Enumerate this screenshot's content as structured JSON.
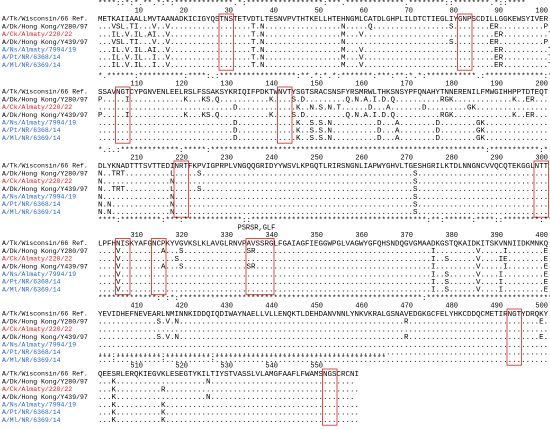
{
  "strains": [
    {
      "name": "A/Tk/Wisconsin/66 Ref.",
      "color": "#000000"
    },
    {
      "name": "A/Dk/Hong Kong/Y280/97",
      "color": "#000000"
    },
    {
      "name": "A/Ck/Almaty/220/22",
      "color": "#d62020"
    },
    {
      "name": "A/Dk/Hong Kong/Y439/97",
      "color": "#000000"
    },
    {
      "name": "A/Ns/Almaty/7994/19",
      "color": "#2a63b8"
    },
    {
      "name": "A/Pt/NR/6368/14",
      "color": "#2a63b8"
    },
    {
      "name": "A/Ml/NR/6369/14",
      "color": "#2a63b8"
    }
  ],
  "blocks": [
    {
      "conservation": "****::*:*.**.*:*:*************.*:*****************:***.*************.********::********.*::****",
      "positions": [
        10,
        20,
        30,
        40,
        50,
        60,
        70,
        80,
        90,
        100
      ],
      "rows": [
        "METKAIIAALLMVTAANADKICIGYQSTNSTETVDTLTESNVPVTHTKELLHTEHNGMLCATDLGHPLILDTCTIEGLIYGNPSCDILLGGKEWSYIVER",
        "...VSL.TI...V..V..................T.N.................N.....Q.................S........ER..........P.EE....",
        "...IL.V.IL.AI..V..................T.N.................M...V.............................ER..........T.......",
        "...VSL.TI...V..V..................T.N.................N.......................S........ER..........P.EE....",
        "...IL.V.IL.AI..V..................T.N.................M...V.............................ER..........T.......",
        "...IL.V.IL..I..V..................T.N.................M...V.............................ER..........T.......",
        "...IL.V.IL..I..V..................T.N.................M...V.............................ER..........T......."
      ]
    },
    {
      "conservation": "*.******:**********:****:.:*****************:**.*:*.*:*******:***:**:*.*:***********.:*************:***:**",
      "positions": [
        110,
        120,
        130,
        140,
        150,
        160,
        170,
        180,
        190,
        200
      ],
      "rows": [
        "SSAVNGTCYPGNVENLEELRSLFSSAKSYKRIQIFPDKTWNVTYSGTSRACSNSFYRSMRWLTHKSNSYPFQNAHYTNNERENILFMWGIHHPPTDTEQT",
        "P.....I............K...KS.Q...........K....S.D.........Q.N.A.I.D.Q..........RGK.............K..ER...",
        "..............................D.............K..N.S.N.T......D...A.......D.........GK..................T......",
        "P.....I............K...KS.Q...........K....S.D.........Q.N.A.I.D.Q..........RGK.............K..ER...",
        "..............................D.............K..S.S.N..........D...A........D........GK..................T...K..",
        "..............................D.............K..S.S.N..........D...A........D........GK..................T...K..",
        "..............................D.............K..S.S.N..........D...A........D........GK..................T...K.."
      ]
    },
    {
      "conservation": "*.:.:*************:*****:*************************************************************:***********:*:**",
      "positions": [
        210,
        220,
        230,
        240,
        250,
        260,
        270,
        280,
        290,
        300
      ],
      "rows": [
        "DLYKNADTTTSVTTEDINRTFKPVIGPRPLVNGQQGRIDYYWSVLKPGQTLRIRSNGNLIAPWYGHVLTGESHGRILKTDLNNGNCVVQCQTEKGGLNTT",
        "N..TRT..........L.....S...............................................S.................................S.............D.T..",
        "N...............N.....................................................S.................................S...................",
        "N..TRT..........L.....S...............................................S.................................S.............D.T..",
        "N...............N.....................................................S.................................S...................",
        "N.N.............N.....................................................S.................................S...................",
        "N.N.............N.....................................................S.................................S..................."
      ]
    },
    {
      "conservation": "****:*********:***:*************::***************************************:**:******:****::********:**",
      "positions": [
        310,
        320,
        330,
        340,
        350,
        360,
        370,
        380,
        390,
        400
      ],
      "annotation": "PSRSR,GLF",
      "rows": [
        "LPFHNISKYAFGNCPKYVGVKSLKLAVGLRNVPAVSSRGLFGAIAGFIEGGWPGLVAGWYGFQHSNDQGVGMAADKGSTQKAIDKITSKVNNIIDKMNKQ",
        "....V.........A...S..............SR.......................................I.........V.....I........E..",
        "....V............S........................................................I..S......V....IE........E..",
        "....V.........A...S..............SR.......................................I.........V.....I........E..",
        "....V.....................................................................I..S......V....I.........E..",
        "....V.....................................................................I..S......V....I.........E..",
        "....V.....................................................................I..S......V....I.........E.."
      ]
    },
    {
      "conservation": "*************:*:*:******************************************************:*****************************:******",
      "positions": [
        410,
        420,
        430,
        440,
        450,
        460,
        470,
        480,
        490,
        500
      ],
      "rows": [
        "YEVIDHEFNEVEARLNMINNKIDDQIQDIWAYNAELLVLLENQKTLDEHDANVNNLYNKVKRALGSNAVEDGKGCFELYHKCDDQCMETIRNGTYDRQKY",
        ".............S.V.N..................................................R.............................E......",
        "....................................................................................................",
        ".............S.V.N..................................................R.............................E......",
        "....................................................................................................",
        "....................................................................................................",
        "...................................................................................................."
      ]
    },
    {
      "conservation": "***:**********:**********:**************************************",
      "positions": [
        510,
        520,
        530,
        540,
        550
      ],
      "rows": [
        "QEESRLERQKIEGVKLESEGTYKILTIYSTVASSLVLAMGFAAFLFWAMSNGSCRCNI",
        "...K....................N................................",
        "...K..........R...........................................",
        "...K....................N................................",
        "...K..........K...........................................",
        "...K..........K...........................................",
        "...K..........K..........................................."
      ]
    }
  ]
}
